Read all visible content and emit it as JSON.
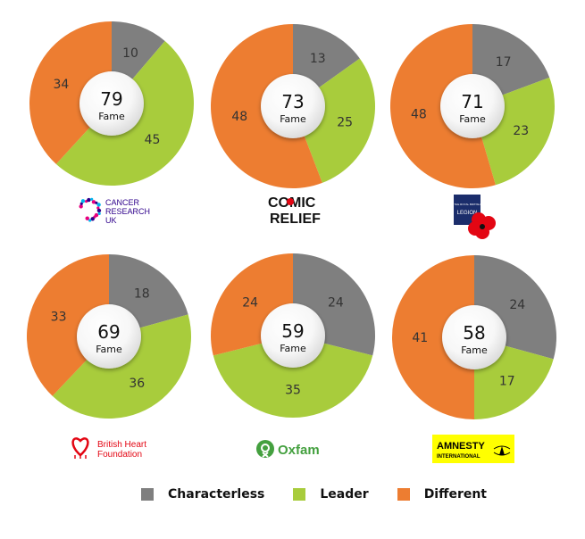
{
  "colors": {
    "characterless": "#7f7f7f",
    "leader": "#a8cc3c",
    "different": "#ed7d31"
  },
  "center_caption": "Fame",
  "chart_data": [
    {
      "type": "pie",
      "brand": "cancer-research-uk",
      "brand_text": [
        "CANCER",
        "RESEARCH",
        "UK"
      ],
      "fame": 79,
      "series": [
        {
          "name": "Characterless",
          "value": 10
        },
        {
          "name": "Leader",
          "value": 45
        },
        {
          "name": "Different",
          "value": 34
        }
      ]
    },
    {
      "type": "pie",
      "brand": "comic-relief",
      "brand_text": [
        "COMIC",
        "RELIEF"
      ],
      "fame": 73,
      "series": [
        {
          "name": "Characterless",
          "value": 13
        },
        {
          "name": "Leader",
          "value": 25
        },
        {
          "name": "Different",
          "value": 48
        }
      ]
    },
    {
      "type": "pie",
      "brand": "royal-british-legion",
      "brand_text": [
        "THE ROYAL BRITISH",
        "LEGION"
      ],
      "fame": 71,
      "series": [
        {
          "name": "Characterless",
          "value": 17
        },
        {
          "name": "Leader",
          "value": 23
        },
        {
          "name": "Different",
          "value": 48
        }
      ]
    },
    {
      "type": "pie",
      "brand": "british-heart-foundation",
      "brand_text": [
        "British Heart",
        "Foundation"
      ],
      "fame": 69,
      "series": [
        {
          "name": "Characterless",
          "value": 18
        },
        {
          "name": "Leader",
          "value": 36
        },
        {
          "name": "Different",
          "value": 33
        }
      ]
    },
    {
      "type": "pie",
      "brand": "oxfam",
      "brand_text": [
        "Oxfam"
      ],
      "fame": 59,
      "series": [
        {
          "name": "Characterless",
          "value": 24
        },
        {
          "name": "Leader",
          "value": 35
        },
        {
          "name": "Different",
          "value": 24
        }
      ]
    },
    {
      "type": "pie",
      "brand": "amnesty-international",
      "brand_text": [
        "AMNESTY",
        "INTERNATIONAL"
      ],
      "fame": 58,
      "series": [
        {
          "name": "Characterless",
          "value": 24
        },
        {
          "name": "Leader",
          "value": 17
        },
        {
          "name": "Different",
          "value": 41
        }
      ]
    }
  ],
  "legend": [
    {
      "label": "Characterless",
      "color": "#7f7f7f"
    },
    {
      "label": "Leader",
      "color": "#a8cc3c"
    },
    {
      "label": "Different",
      "color": "#ed7d31"
    }
  ]
}
